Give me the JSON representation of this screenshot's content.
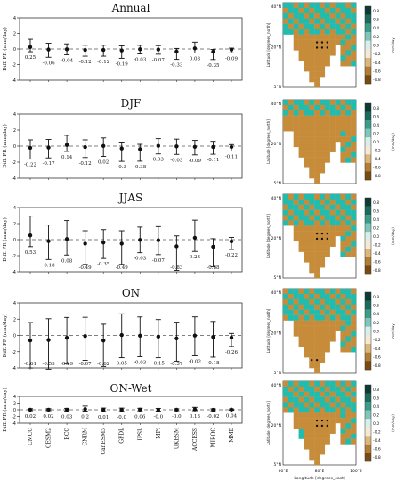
{
  "colors": {
    "land": "#c68c3a",
    "water": "#21bcae",
    "ocean": "#ffffff",
    "bar_dark": "#0b3b33"
  },
  "chart_data": [
    {
      "type": "errorbar",
      "title": "Annual",
      "ylabel": "Diff. PR (mm/day)",
      "ylim": [
        -4,
        4
      ],
      "yticks": [
        "4",
        "2",
        "0",
        "-2",
        "-4"
      ],
      "categories": [
        "CMCC",
        "CESM2",
        "BCC",
        "CNRM",
        "CanESM5",
        "GFDL",
        "IPSL",
        "MPI",
        "UKESM",
        "ACCESS",
        "MIROC",
        "MME"
      ],
      "values": [
        0.25,
        -0.06,
        -0.04,
        -0.12,
        -0.12,
        -0.19,
        -0.03,
        -0.07,
        -0.33,
        0.08,
        -0.35,
        -0.09
      ],
      "value_labels": [
        "0.25",
        "-0.06",
        "-0.04",
        "-0.12",
        "-0.12",
        "-0.19",
        "-0.03",
        "-0.07",
        "-0.33",
        "0.08",
        "-0.35",
        "-0.09"
      ],
      "err_low": [
        -0.6,
        -1.0,
        -0.7,
        -0.8,
        -0.8,
        -1.0,
        -0.6,
        -0.6,
        -1.0,
        -0.6,
        -1.0,
        -0.4
      ],
      "err_high": [
        1.0,
        0.8,
        0.7,
        0.6,
        0.6,
        0.6,
        0.5,
        0.5,
        0.4,
        0.8,
        0.3,
        0.2
      ],
      "map": {
        "colorbar_ticks": [
          "0.8",
          "0.6",
          "0.4",
          "0.2",
          "0.0",
          "-0.2",
          "-0.4",
          "-0.6",
          "-0.8"
        ],
        "colorbar_label": "(mm/day)",
        "ylabel": "Latitude [degrees_north]",
        "lat_ticks": [
          "40°N",
          "20°N",
          "5°N"
        ],
        "dots": true
      }
    },
    {
      "type": "errorbar",
      "title": "DJF",
      "ylabel": "Diff. PR (mm/day)",
      "ylim": [
        -4,
        4
      ],
      "yticks": [
        "4",
        "2",
        "0",
        "-2",
        "-4"
      ],
      "categories": [
        "CMCC",
        "CESM2",
        "BCC",
        "CNRM",
        "CanESM5",
        "GFDL",
        "IPSL",
        "MPI",
        "UKESM",
        "ACCESS",
        "MIROC",
        "MME"
      ],
      "values": [
        -0.22,
        -0.17,
        0.14,
        -0.12,
        0.02,
        -0.3,
        -0.38,
        0.03,
        -0.03,
        -0.09,
        -0.11,
        -0.11
      ],
      "value_labels": [
        "-0.22",
        "-0.17",
        "0.14",
        "-0.12",
        "0.02",
        "-0.3",
        "-0.38",
        "0.03",
        "-0.03",
        "-0.09",
        "-0.11",
        "-0.11"
      ],
      "err_low": [
        -1.4,
        -1.3,
        -0.8,
        -1.3,
        -1.3,
        -1.6,
        -1.5,
        -1.0,
        -1.0,
        -1.0,
        -0.9,
        -0.5
      ],
      "err_high": [
        1.0,
        1.0,
        1.2,
        0.9,
        1.0,
        0.8,
        0.6,
        0.9,
        0.9,
        0.8,
        0.7,
        0.3
      ],
      "map": {
        "colorbar_ticks": [
          "0.8",
          "0.6",
          "0.4",
          "0.2",
          "0.0",
          "-0.2",
          "-0.4",
          "-0.6",
          "-0.8"
        ],
        "colorbar_label": "(mm/day)",
        "ylabel": "Latitude [degrees_north]",
        "lat_ticks": [
          "40°N",
          "20°N",
          "5°N"
        ],
        "dots": false
      }
    },
    {
      "type": "errorbar",
      "title": "JJAS",
      "ylabel": "Diff. PR (mm/day)",
      "ylim": [
        -4,
        4
      ],
      "yticks": [
        "4",
        "2",
        "0",
        "-2",
        "-4"
      ],
      "categories": [
        "CMCC",
        "CESM2",
        "BCC",
        "CNRM",
        "CanESM5",
        "GFDL",
        "IPSL",
        "MPI",
        "UKESM",
        "ACCESS",
        "MIROC",
        "MME"
      ],
      "values": [
        0.53,
        -0.18,
        0.08,
        -0.49,
        -0.35,
        -0.49,
        -0.03,
        -0.07,
        -0.83,
        0.23,
        -0.88,
        -0.22
      ],
      "value_labels": [
        "0.53",
        "-0.18",
        "0.08",
        "-0.49",
        "-0.35",
        "-0.49",
        "-0.03",
        "-0.07",
        "-0.83",
        "0.23",
        "-0.88",
        "-0.22"
      ],
      "err_low": [
        -1.4,
        -2.3,
        -2.0,
        -2.6,
        -2.0,
        -2.6,
        -1.6,
        -1.8,
        -3.0,
        -1.7,
        -2.5,
        -1.0
      ],
      "err_high": [
        2.4,
        2.0,
        2.3,
        1.6,
        1.6,
        1.6,
        1.6,
        1.7,
        1.3,
        2.2,
        1.0,
        0.5
      ],
      "map": {
        "colorbar_ticks": [
          "0.8",
          "0.6",
          "0.4",
          "0.2",
          "0.0",
          "-0.2",
          "-0.4",
          "-0.6",
          "-0.8"
        ],
        "colorbar_label": "(mm/day)",
        "ylabel": "Latitude [degrees_north]",
        "lat_ticks": [
          "40°N",
          "20°N",
          "5°N"
        ],
        "dots": true
      }
    },
    {
      "type": "errorbar",
      "title": "ON",
      "ylabel": "Diff. PR (mm/day)",
      "ylim": [
        -4,
        4
      ],
      "yticks": [
        "4",
        "2",
        "0",
        "-2",
        "-4"
      ],
      "categories": [
        "CMCC",
        "CESM2",
        "BCC",
        "CNRM",
        "CanESM5",
        "GFDL",
        "IPSL",
        "MPI",
        "UKESM",
        "ACCESS",
        "MIROC",
        "MME"
      ],
      "values": [
        -0.61,
        -0.55,
        -0.29,
        -0.07,
        -0.62,
        0.05,
        -0.03,
        -0.15,
        -0.37,
        -0.02,
        -0.18,
        -0.26
      ],
      "value_labels": [
        "-0.61",
        "-0.55",
        "-0.29",
        "-0.07",
        "-0.62",
        "0.05",
        "-0.03",
        "-0.15",
        "-0.37",
        "-0.02",
        "-0.18",
        "-0.26"
      ],
      "err_low": [
        -3.4,
        -3.6,
        -3.2,
        -3.0,
        -3.2,
        -2.8,
        -2.6,
        -2.6,
        -2.8,
        -2.5,
        -2.5,
        -1.1
      ],
      "err_high": [
        2.2,
        2.6,
        2.5,
        2.3,
        2.0,
        2.6,
        2.3,
        2.1,
        2.0,
        2.3,
        1.9,
        0.5
      ],
      "map": {
        "colorbar_ticks": [
          "0.8",
          "0.6",
          "0.4",
          "0.2",
          "0.0",
          "-0.2",
          "-0.4",
          "-0.6",
          "-0.8"
        ],
        "colorbar_label": "(mm/day)",
        "ylabel": "Latitude [degrees_north]",
        "lat_ticks": [
          "40°N",
          "20°N",
          "5°N"
        ],
        "dots": true
      }
    },
    {
      "type": "errorbar",
      "title": "ON-Wet",
      "ylabel": "Diff. PR (mm/day)",
      "ylim": [
        -4,
        4
      ],
      "yticks": [
        "4",
        "2",
        "0",
        "-2",
        "-4"
      ],
      "categories": [
        "CMCC",
        "CESM2",
        "BCC",
        "CNRM",
        "CanESM5",
        "GFDL",
        "IPSL",
        "MPI",
        "UKESM",
        "ACCESS",
        "MIROC",
        "MME"
      ],
      "values": [
        0.02,
        0.02,
        0.03,
        0.2,
        0.01,
        -0.0,
        0.06,
        -0.0,
        -0.0,
        0.13,
        -0.02,
        0.04
      ],
      "value_labels": [
        "0.02",
        "0.02",
        "0.03",
        "0.2",
        "0.01",
        "-0.0",
        "0.06",
        "-0.0",
        "-0.0",
        "0.13",
        "-0.02",
        "0.04"
      ],
      "err_low": [
        -0.3,
        -0.3,
        -0.4,
        -0.6,
        -0.5,
        -0.5,
        -0.4,
        -0.4,
        -0.3,
        -0.4,
        -0.3,
        -0.2
      ],
      "err_high": [
        0.3,
        0.3,
        0.4,
        0.9,
        0.5,
        0.5,
        0.4,
        0.4,
        0.3,
        0.6,
        0.3,
        0.2
      ],
      "map": {
        "colorbar_ticks": [
          "0.8",
          "0.6",
          "0.4",
          "0.2",
          "0.0",
          "-0.2",
          "-0.4",
          "-0.6",
          "-0.8"
        ],
        "colorbar_label": "(mm/day)",
        "ylabel": "Latitude [degrees_north]",
        "xlabel": "Longitude [degrees_east]",
        "lat_ticks": [
          "40°N",
          "20°N",
          "5°N"
        ],
        "lon_ticks": [
          "60°E",
          "80°E",
          "100°E"
        ],
        "dots": true
      }
    }
  ]
}
